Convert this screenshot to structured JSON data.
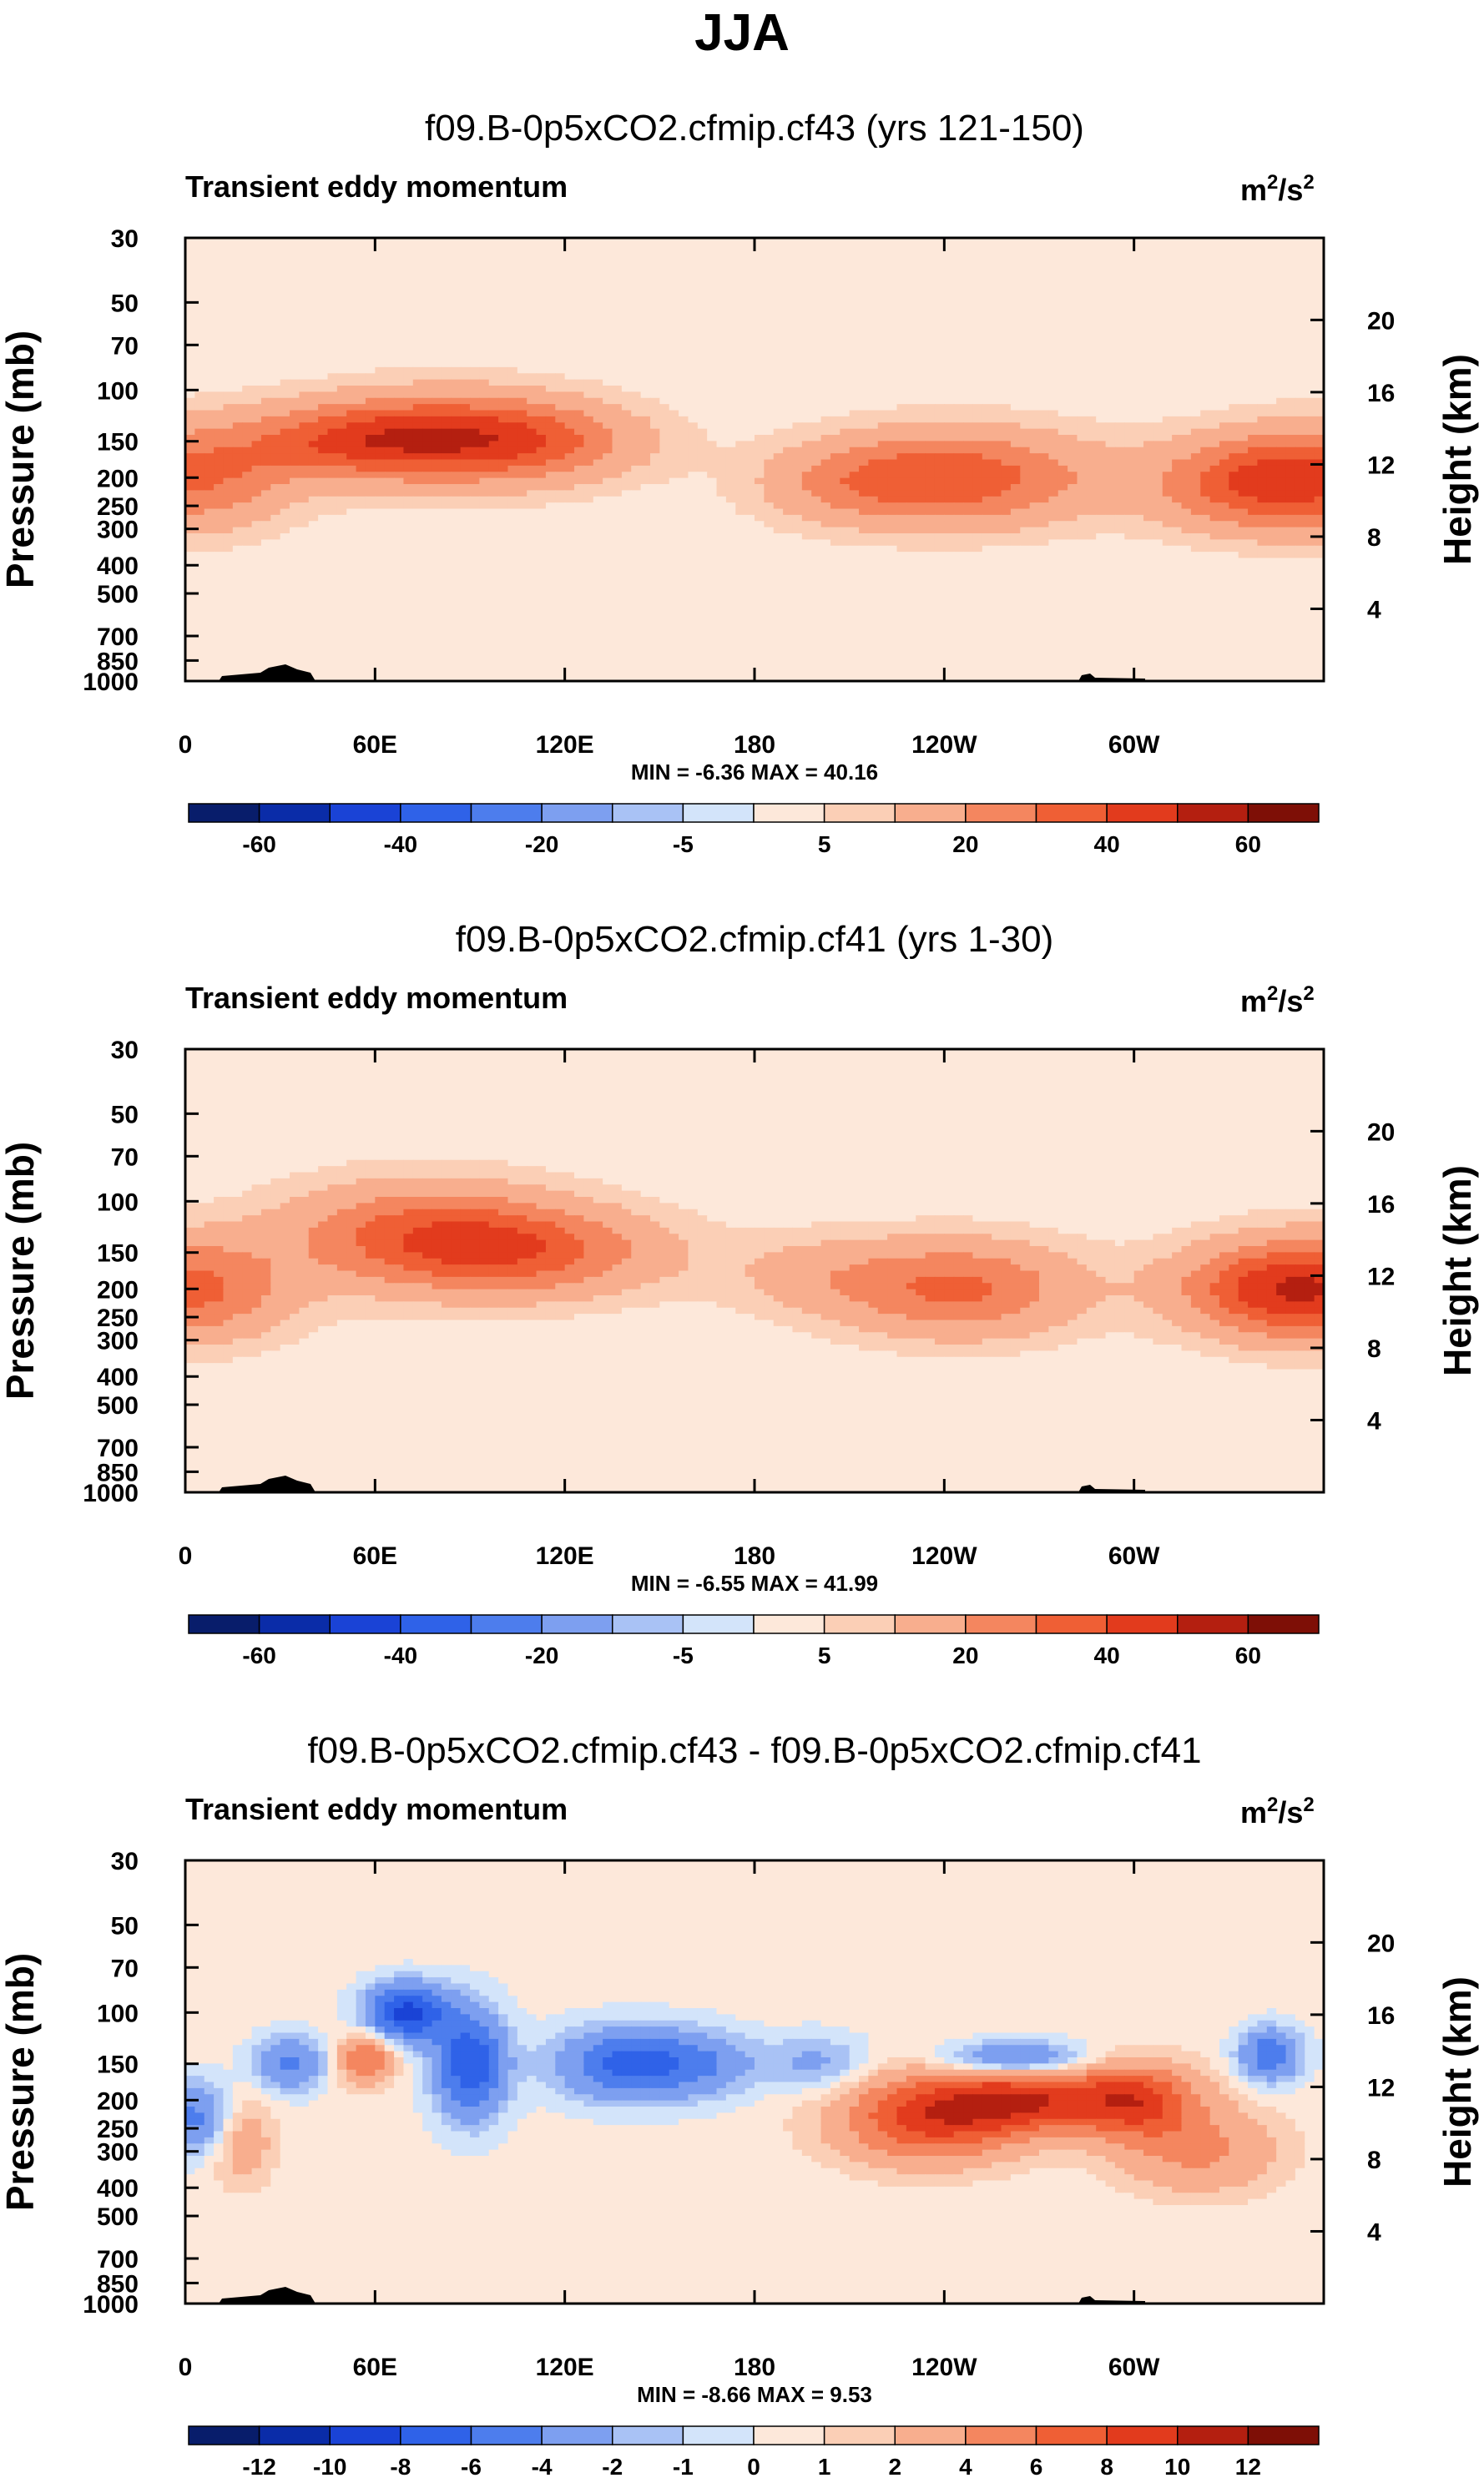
{
  "page": {
    "title": "JJA"
  },
  "chart_data": [
    {
      "type": "heatmap",
      "title": "f09.B-0p5xCO2.cfmip.cf43 (yrs 121-150)",
      "subtitle": "Transient eddy momentum",
      "units": "m²/s²",
      "units_base": "m",
      "units_exp": "2",
      "units_mid": "/s",
      "units_exp2": "2",
      "ylabel": "Pressure (mb)",
      "ylabel_right": "Height (km)",
      "xticks": [
        "0",
        "60E",
        "120E",
        "180",
        "120W",
        "60W"
      ],
      "yticks": [
        "30",
        "50",
        "70",
        "100",
        "150",
        "200",
        "250",
        "300",
        "400",
        "500",
        "700",
        "850",
        "1000"
      ],
      "yticks_right": [
        "20",
        "16",
        "12",
        "8",
        "4"
      ],
      "stats": "MIN = -6.36  MAX = 40.16",
      "colorbar_labels": [
        "-60",
        "-40",
        "-20",
        "-5",
        "5",
        "20",
        "40",
        "60"
      ],
      "colorbar_levels": [
        -70,
        -60,
        -50,
        -40,
        -30,
        -20,
        -10,
        -5,
        0,
        5,
        10,
        20,
        30,
        40,
        50,
        60,
        70
      ],
      "colors": [
        "#081d6b",
        "#0a2ca8",
        "#1a43d6",
        "#2f62e8",
        "#4d7ded",
        "#7d9ff0",
        "#a9c2f5",
        "#d3e4fa",
        "#fde8da",
        "#fbcfb6",
        "#f8ae8e",
        "#f4865f",
        "#ef5f35",
        "#e23b1d",
        "#b41f10",
        "#7e0f06"
      ],
      "features": [
        {
          "lon": 0,
          "p": 200,
          "amp": 30,
          "wl": 22,
          "wp": 0.28
        },
        {
          "lon": 360,
          "p": 200,
          "amp": 30,
          "wl": 22,
          "wp": 0.28
        },
        {
          "lon": 335,
          "p": 210,
          "amp": 26,
          "wl": 22,
          "wp": 0.25
        },
        {
          "lon": 50,
          "p": 150,
          "amp": 26,
          "wl": 25,
          "wp": 0.2
        },
        {
          "lon": 80,
          "p": 145,
          "amp": 28,
          "wl": 28,
          "wp": 0.25
        },
        {
          "lon": 110,
          "p": 150,
          "amp": 24,
          "wl": 25,
          "wp": 0.22
        },
        {
          "lon": 245,
          "p": 200,
          "amp": 34,
          "wl": 30,
          "wp": 0.26
        },
        {
          "lon": 210,
          "p": 210,
          "amp": 12,
          "wl": 20,
          "wp": 0.22
        }
      ],
      "background": 2
    },
    {
      "type": "heatmap",
      "title": "f09.B-0p5xCO2.cfmip.cf41 (yrs 1-30)",
      "subtitle": "Transient eddy momentum",
      "units": "m²/s²",
      "units_base": "m",
      "units_exp": "2",
      "units_mid": "/s",
      "units_exp2": "2",
      "ylabel": "Pressure (mb)",
      "ylabel_right": "Height (km)",
      "xticks": [
        "0",
        "60E",
        "120E",
        "180",
        "120W",
        "60W"
      ],
      "yticks": [
        "30",
        "50",
        "70",
        "100",
        "150",
        "200",
        "250",
        "300",
        "400",
        "500",
        "700",
        "850",
        "1000"
      ],
      "yticks_right": [
        "20",
        "16",
        "12",
        "8",
        "4"
      ],
      "stats": "MIN = -6.55  MAX = 41.99",
      "colorbar_labels": [
        "-60",
        "-40",
        "-20",
        "-5",
        "5",
        "20",
        "40",
        "60"
      ],
      "colorbar_levels": [
        -70,
        -60,
        -50,
        -40,
        -30,
        -20,
        -10,
        -5,
        0,
        5,
        10,
        20,
        30,
        40,
        50,
        60,
        70
      ],
      "colors": [
        "#081d6b",
        "#0a2ca8",
        "#1a43d6",
        "#2f62e8",
        "#4d7ded",
        "#7d9ff0",
        "#a9c2f5",
        "#d3e4fa",
        "#fde8da",
        "#fbcfb6",
        "#f8ae8e",
        "#f4865f",
        "#ef5f35",
        "#e23b1d",
        "#b41f10",
        "#7e0f06"
      ],
      "features": [
        {
          "lon": 0,
          "p": 200,
          "amp": 32,
          "wl": 22,
          "wp": 0.28
        },
        {
          "lon": 360,
          "p": 200,
          "amp": 32,
          "wl": 22,
          "wp": 0.28
        },
        {
          "lon": 340,
          "p": 200,
          "amp": 24,
          "wl": 22,
          "wp": 0.25
        },
        {
          "lon": 75,
          "p": 130,
          "amp": 30,
          "wl": 30,
          "wp": 0.28
        },
        {
          "lon": 110,
          "p": 150,
          "amp": 26,
          "wl": 30,
          "wp": 0.24
        },
        {
          "lon": 245,
          "p": 200,
          "amp": 30,
          "wl": 26,
          "wp": 0.26
        },
        {
          "lon": 200,
          "p": 180,
          "amp": 10,
          "wl": 20,
          "wp": 0.22
        }
      ],
      "background": 2
    },
    {
      "type": "heatmap",
      "title": "f09.B-0p5xCO2.cfmip.cf43 - f09.B-0p5xCO2.cfmip.cf41",
      "subtitle": "Transient eddy momentum",
      "units": "m²/s²",
      "units_base": "m",
      "units_exp": "2",
      "units_mid": "/s",
      "units_exp2": "2",
      "ylabel": "Pressure (mb)",
      "ylabel_right": "Height (km)",
      "xticks": [
        "0",
        "60E",
        "120E",
        "180",
        "120W",
        "60W"
      ],
      "yticks": [
        "30",
        "50",
        "70",
        "100",
        "150",
        "200",
        "250",
        "300",
        "400",
        "500",
        "700",
        "850",
        "1000"
      ],
      "yticks_right": [
        "20",
        "16",
        "12",
        "8",
        "4"
      ],
      "stats": "MIN = -8.66  MAX =  9.53",
      "colorbar_labels": [
        "-12",
        "-10",
        "-8",
        "-6",
        "-4",
        "-2",
        "-1",
        "0",
        "1",
        "2",
        "4",
        "6",
        "8",
        "10",
        "12"
      ],
      "colorbar_levels": [
        -14,
        -12,
        -10,
        -8,
        -6,
        -4,
        -2,
        -1,
        0,
        1,
        2,
        4,
        6,
        8,
        10,
        12,
        14
      ],
      "colors": [
        "#081d6b",
        "#0a2ca8",
        "#1a43d6",
        "#2f62e8",
        "#4d7ded",
        "#7d9ff0",
        "#a9c2f5",
        "#d3e4fa",
        "#fde8da",
        "#fbcfb6",
        "#f8ae8e",
        "#f4865f",
        "#ef5f35",
        "#e23b1d",
        "#b41f10",
        "#7e0f06"
      ],
      "features": [
        {
          "lon": 3,
          "p": 230,
          "amp": -5,
          "wl": 8,
          "wp": 0.2
        },
        {
          "lon": 18,
          "p": 280,
          "amp": 3,
          "wl": 7,
          "wp": 0.25
        },
        {
          "lon": 33,
          "p": 150,
          "amp": -5,
          "wl": 8,
          "wp": 0.15
        },
        {
          "lon": 57,
          "p": 145,
          "amp": 6,
          "wl": 6,
          "wp": 0.14
        },
        {
          "lon": 70,
          "p": 100,
          "amp": -9,
          "wl": 9,
          "wp": 0.16
        },
        {
          "lon": 90,
          "p": 150,
          "amp": -8,
          "wl": 8,
          "wp": 0.3
        },
        {
          "lon": 140,
          "p": 150,
          "amp": -7,
          "wl": 16,
          "wp": 0.2
        },
        {
          "lon": 165,
          "p": 150,
          "amp": -3,
          "wl": 12,
          "wp": 0.18
        },
        {
          "lon": 235,
          "p": 230,
          "amp": 8,
          "wl": 20,
          "wp": 0.25
        },
        {
          "lon": 265,
          "p": 200,
          "amp": 8,
          "wl": 18,
          "wp": 0.18
        },
        {
          "lon": 300,
          "p": 200,
          "amp": 8,
          "wl": 14,
          "wp": 0.2
        },
        {
          "lon": 320,
          "p": 300,
          "amp": 4,
          "wl": 18,
          "wp": 0.25
        },
        {
          "lon": 262,
          "p": 145,
          "amp": -6,
          "wl": 16,
          "wp": 0.1
        },
        {
          "lon": 343,
          "p": 140,
          "amp": -6,
          "wl": 7,
          "wp": 0.15
        },
        {
          "lon": 200,
          "p": 150,
          "amp": -3,
          "wl": 12,
          "wp": 0.16
        }
      ],
      "background": 0.4
    }
  ]
}
